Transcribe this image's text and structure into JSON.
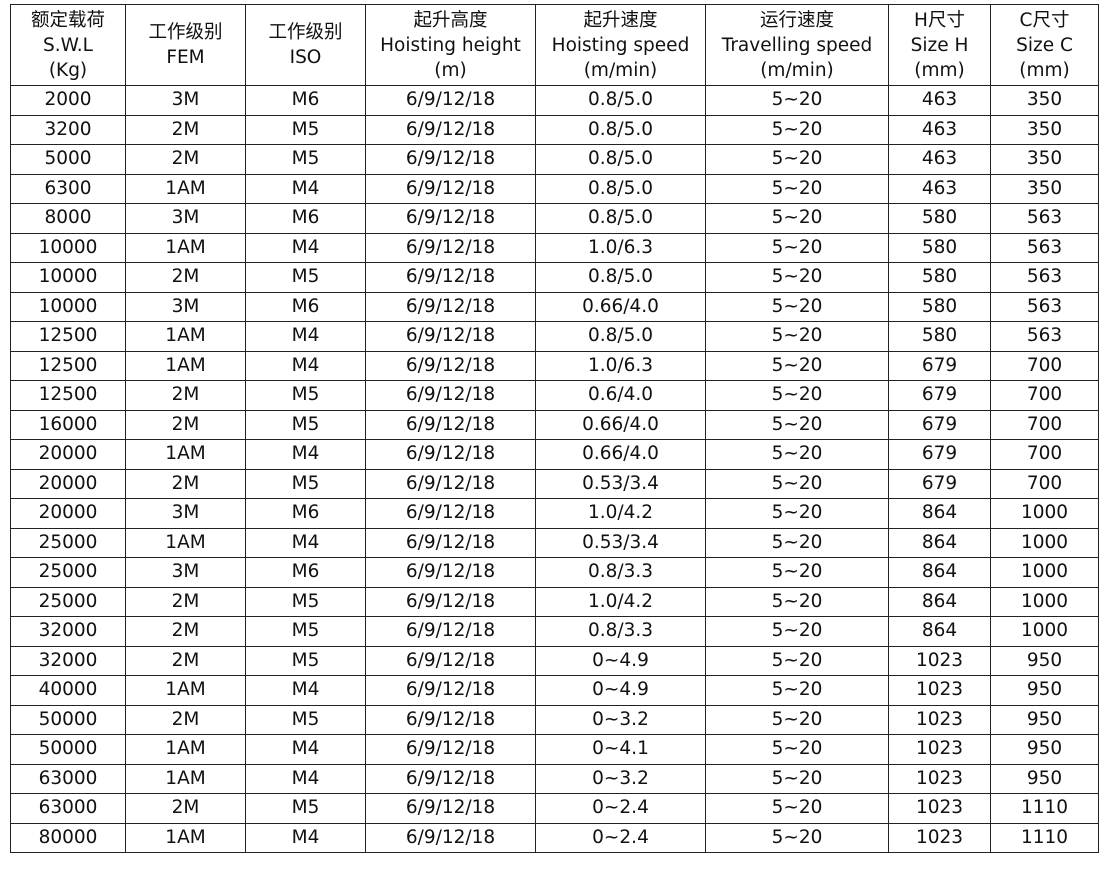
{
  "table": {
    "header": [
      [
        "额定载荷",
        "S.W.L",
        "(Kg)"
      ],
      [
        "工作级别",
        "FEM"
      ],
      [
        "工作级别",
        "ISO"
      ],
      [
        "起升高度",
        "Hoisting height",
        "(m)"
      ],
      [
        "起升速度",
        "Hoisting speed",
        "(m/min)"
      ],
      [
        "运行速度",
        "Travelling speed",
        "(m/min)"
      ],
      [
        "H尺寸",
        "Size H",
        "(mm)"
      ],
      [
        "C尺寸",
        "Size C",
        "(mm)"
      ]
    ],
    "rows": [
      [
        "2000",
        "3M",
        "M6",
        "6/9/12/18",
        "0.8/5.0",
        "5~20",
        "463",
        "350"
      ],
      [
        "3200",
        "2M",
        "M5",
        "6/9/12/18",
        "0.8/5.0",
        "5~20",
        "463",
        "350"
      ],
      [
        "5000",
        "2M",
        "M5",
        "6/9/12/18",
        "0.8/5.0",
        "5~20",
        "463",
        "350"
      ],
      [
        "6300",
        "1AM",
        "M4",
        "6/9/12/18",
        "0.8/5.0",
        "5~20",
        "463",
        "350"
      ],
      [
        "8000",
        "3M",
        "M6",
        "6/9/12/18",
        "0.8/5.0",
        "5~20",
        "580",
        "563"
      ],
      [
        "10000",
        "1AM",
        "M4",
        "6/9/12/18",
        "1.0/6.3",
        "5~20",
        "580",
        "563"
      ],
      [
        "10000",
        "2M",
        "M5",
        "6/9/12/18",
        "0.8/5.0",
        "5~20",
        "580",
        "563"
      ],
      [
        "10000",
        "3M",
        "M6",
        "6/9/12/18",
        "0.66/4.0",
        "5~20",
        "580",
        "563"
      ],
      [
        "12500",
        "1AM",
        "M4",
        "6/9/12/18",
        "0.8/5.0",
        "5~20",
        "580",
        "563"
      ],
      [
        "12500",
        "1AM",
        "M4",
        "6/9/12/18",
        "1.0/6.3",
        "5~20",
        "679",
        "700"
      ],
      [
        "12500",
        "2M",
        "M5",
        "6/9/12/18",
        "0.6/4.0",
        "5~20",
        "679",
        "700"
      ],
      [
        "16000",
        "2M",
        "M5",
        "6/9/12/18",
        "0.66/4.0",
        "5~20",
        "679",
        "700"
      ],
      [
        "20000",
        "1AM",
        "M4",
        "6/9/12/18",
        "0.66/4.0",
        "5~20",
        "679",
        "700"
      ],
      [
        "20000",
        "2M",
        "M5",
        "6/9/12/18",
        "0.53/3.4",
        "5~20",
        "679",
        "700"
      ],
      [
        "20000",
        "3M",
        "M6",
        "6/9/12/18",
        "1.0/4.2",
        "5~20",
        "864",
        "1000"
      ],
      [
        "25000",
        "1AM",
        "M4",
        "6/9/12/18",
        "0.53/3.4",
        "5~20",
        "864",
        "1000"
      ],
      [
        "25000",
        "3M",
        "M6",
        "6/9/12/18",
        "0.8/3.3",
        "5~20",
        "864",
        "1000"
      ],
      [
        "25000",
        "2M",
        "M5",
        "6/9/12/18",
        "1.0/4.2",
        "5~20",
        "864",
        "1000"
      ],
      [
        "32000",
        "2M",
        "M5",
        "6/9/12/18",
        "0.8/3.3",
        "5~20",
        "864",
        "1000"
      ],
      [
        "32000",
        "2M",
        "M5",
        "6/9/12/18",
        "0~4.9",
        "5~20",
        "1023",
        "950"
      ],
      [
        "40000",
        "1AM",
        "M4",
        "6/9/12/18",
        "0~4.9",
        "5~20",
        "1023",
        "950"
      ],
      [
        "50000",
        "2M",
        "M5",
        "6/9/12/18",
        "0~3.2",
        "5~20",
        "1023",
        "950"
      ],
      [
        "50000",
        "1AM",
        "M4",
        "6/9/12/18",
        "0~4.1",
        "5~20",
        "1023",
        "950"
      ],
      [
        "63000",
        "1AM",
        "M4",
        "6/9/12/18",
        "0~3.2",
        "5~20",
        "1023",
        "950"
      ],
      [
        "63000",
        "2M",
        "M5",
        "6/9/12/18",
        "0~2.4",
        "5~20",
        "1023",
        "1110"
      ],
      [
        "80000",
        "1AM",
        "M4",
        "6/9/12/18",
        "0~2.4",
        "5~20",
        "1023",
        "1110"
      ]
    ]
  }
}
